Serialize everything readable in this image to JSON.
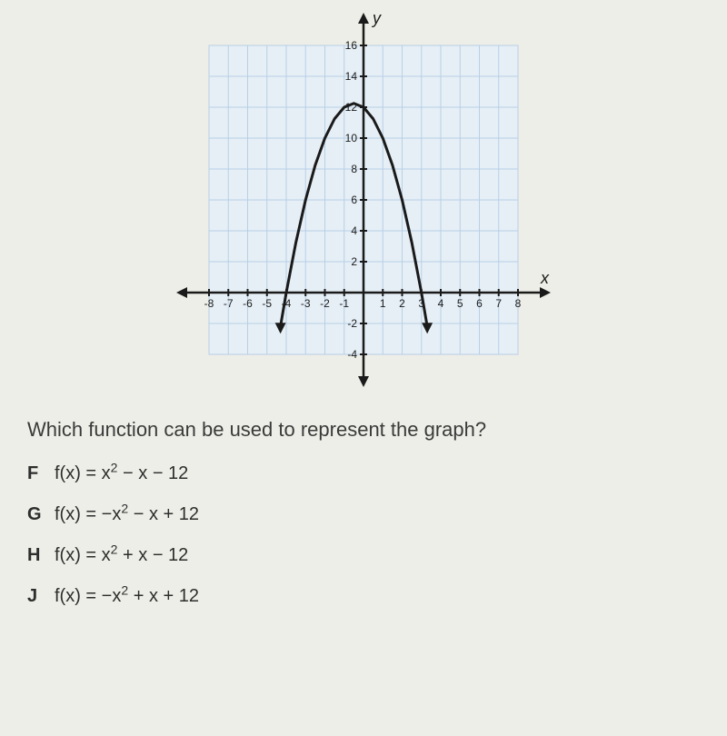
{
  "chart": {
    "type": "scatter_with_curve",
    "x_axis_label": "x",
    "y_axis_label": "y",
    "xlim": [
      -8,
      8
    ],
    "ylim": [
      -4,
      16
    ],
    "x_ticks": [
      -8,
      -7,
      -6,
      -5,
      -4,
      -3,
      -2,
      -1,
      1,
      2,
      3,
      4,
      5,
      6,
      7,
      8
    ],
    "y_ticks": [
      -4,
      -2,
      2,
      4,
      6,
      8,
      10,
      12,
      14,
      16
    ],
    "grid_xlim": [
      -8,
      8
    ],
    "grid_ylim": [
      -4,
      16
    ],
    "grid_color": "#b8cfe5",
    "axis_color": "#1a1a1a",
    "curve_color": "#1a1a1a",
    "curve_width": 3,
    "background_color": "#e6eff6",
    "label_fontsize": 14,
    "tick_fontsize": 12,
    "tick_color": "#1a1a1a",
    "curve": {
      "description": "parabola f(x) = -x^2 - x + 12, roots at x=-4 and x=3, vertex approx (-0.5, 12.25)",
      "points": [
        [
          -4.3,
          -2.19
        ],
        [
          -4,
          0
        ],
        [
          -3.5,
          3.25
        ],
        [
          -3,
          6
        ],
        [
          -2.5,
          8.25
        ],
        [
          -2,
          10
        ],
        [
          -1.5,
          11.25
        ],
        [
          -1,
          12
        ],
        [
          -0.5,
          12.25
        ],
        [
          0,
          12
        ],
        [
          0.5,
          11.25
        ],
        [
          1,
          10
        ],
        [
          1.5,
          8.25
        ],
        [
          2,
          6
        ],
        [
          2.5,
          3.25
        ],
        [
          3,
          0
        ],
        [
          3.3,
          -2.19
        ]
      ]
    }
  },
  "question": {
    "text": "Which function can be used to represent the graph?",
    "options": [
      {
        "letter": "F",
        "formula_html": "f(x) = x<sup>2</sup> − x − 12"
      },
      {
        "letter": "G",
        "formula_html": "f(x) = −x<sup>2</sup> − x + 12"
      },
      {
        "letter": "H",
        "formula_html": "f(x) = x<sup>2</sup> + x − 12"
      },
      {
        "letter": "J",
        "formula_html": "f(x) = −x<sup>2</sup> + x + 12"
      }
    ]
  }
}
